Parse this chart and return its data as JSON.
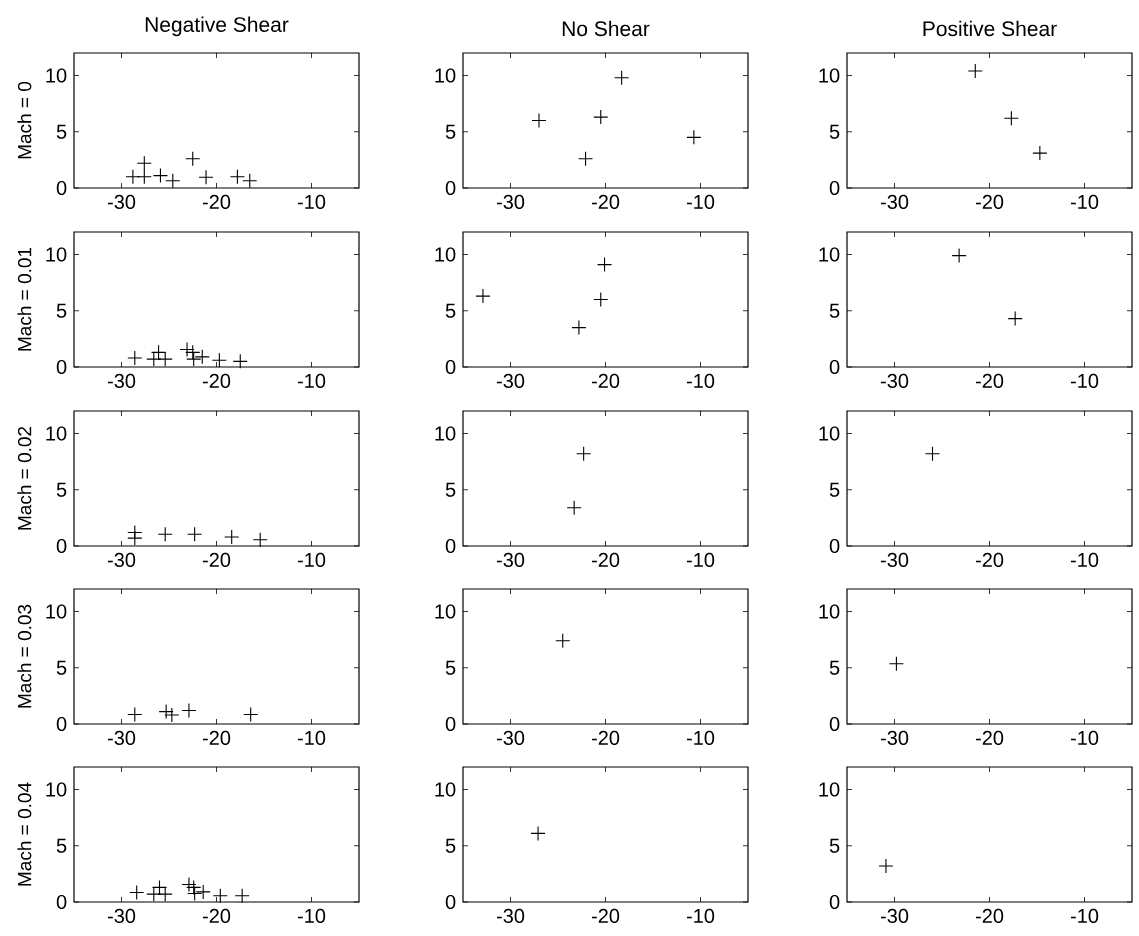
{
  "chart_data": [
    {
      "type": "scatter",
      "title": "Negative Shear",
      "ylabel": "Mach = 0",
      "color": "#000000",
      "marker": "cross",
      "xlim": [
        -35,
        -5
      ],
      "ylim": [
        0,
        12
      ],
      "xticks": [
        -30,
        -20,
        -10
      ],
      "yticks": [
        0,
        5,
        10
      ],
      "x": [
        -28.8,
        -27.6,
        -27.6,
        -25.9,
        -24.6,
        -22.5,
        -21.1,
        -17.8,
        -16.5
      ],
      "values": [
        1.0,
        1.0,
        2.2,
        1.1,
        0.65,
        2.6,
        0.95,
        1.0,
        0.65
      ]
    },
    {
      "type": "scatter",
      "title": "No Shear",
      "color": "#000000",
      "marker": "cross",
      "xlim": [
        -35,
        -5
      ],
      "ylim": [
        0,
        12
      ],
      "xticks": [
        -30,
        -20,
        -10
      ],
      "yticks": [
        0,
        5,
        10
      ],
      "x": [
        -27.0,
        -22.1,
        -20.5,
        -18.3,
        -10.7
      ],
      "values": [
        6.0,
        2.6,
        6.3,
        9.8,
        4.5
      ]
    },
    {
      "type": "scatter",
      "title": "Positive Shear",
      "color": "#000000",
      "marker": "cross",
      "xlim": [
        -35,
        -5
      ],
      "ylim": [
        0,
        12
      ],
      "xticks": [
        -30,
        -20,
        -10
      ],
      "yticks": [
        0,
        5,
        10
      ],
      "x": [
        -21.5,
        -17.7,
        -14.7
      ],
      "values": [
        10.4,
        6.2,
        3.1
      ]
    },
    {
      "type": "scatter",
      "ylabel": "Mach = 0.01",
      "color": "#000000",
      "marker": "cross",
      "xlim": [
        -35,
        -5
      ],
      "ylim": [
        0,
        12
      ],
      "xticks": [
        -30,
        -20,
        -10
      ],
      "yticks": [
        0,
        5,
        10
      ],
      "x": [
        -28.6,
        -26.6,
        -26.1,
        -25.4,
        -23.1,
        -22.5,
        -22.4,
        -21.5,
        -19.7,
        -17.5
      ],
      "values": [
        0.8,
        0.7,
        1.3,
        0.7,
        1.55,
        1.3,
        0.7,
        0.9,
        0.6,
        0.5
      ]
    },
    {
      "type": "scatter",
      "color": "#000000",
      "marker": "cross",
      "xlim": [
        -35,
        -5
      ],
      "ylim": [
        0,
        12
      ],
      "xticks": [
        -30,
        -20,
        -10
      ],
      "yticks": [
        0,
        5,
        10
      ],
      "x": [
        -32.9,
        -22.8,
        -20.5,
        -20.1
      ],
      "values": [
        6.3,
        3.5,
        6.0,
        9.1
      ]
    },
    {
      "type": "scatter",
      "color": "#000000",
      "marker": "cross",
      "xlim": [
        -35,
        -5
      ],
      "ylim": [
        0,
        12
      ],
      "xticks": [
        -30,
        -20,
        -10
      ],
      "yticks": [
        0,
        5,
        10
      ],
      "x": [
        -23.2,
        -17.3
      ],
      "values": [
        9.9,
        4.3
      ]
    },
    {
      "type": "scatter",
      "ylabel": "Mach = 0.02",
      "color": "#000000",
      "marker": "cross",
      "xlim": [
        -35,
        -5
      ],
      "ylim": [
        0,
        12
      ],
      "xticks": [
        -30,
        -20,
        -10
      ],
      "yticks": [
        0,
        5,
        10
      ],
      "x": [
        -28.6,
        -28.6,
        -25.4,
        -22.3,
        -18.4,
        -15.4
      ],
      "values": [
        1.2,
        0.7,
        1.05,
        1.05,
        0.8,
        0.55
      ]
    },
    {
      "type": "scatter",
      "color": "#000000",
      "marker": "cross",
      "xlim": [
        -35,
        -5
      ],
      "ylim": [
        0,
        12
      ],
      "xticks": [
        -30,
        -20,
        -10
      ],
      "yticks": [
        0,
        5,
        10
      ],
      "x": [
        -22.3,
        -23.3
      ],
      "values": [
        8.2,
        3.4
      ]
    },
    {
      "type": "scatter",
      "color": "#000000",
      "marker": "cross",
      "xlim": [
        -35,
        -5
      ],
      "ylim": [
        0,
        12
      ],
      "xticks": [
        -30,
        -20,
        -10
      ],
      "yticks": [
        0,
        5,
        10
      ],
      "x": [
        -26.0
      ],
      "values": [
        8.2
      ]
    },
    {
      "type": "scatter",
      "ylabel": "Mach = 0.03",
      "color": "#000000",
      "marker": "cross",
      "xlim": [
        -35,
        -5
      ],
      "ylim": [
        0,
        12
      ],
      "xticks": [
        -30,
        -20,
        -10
      ],
      "yticks": [
        0,
        5,
        10
      ],
      "x": [
        -28.6,
        -25.3,
        -24.7,
        -22.9,
        -16.4
      ],
      "values": [
        0.85,
        1.1,
        0.8,
        1.2,
        0.85
      ]
    },
    {
      "type": "scatter",
      "color": "#000000",
      "marker": "cross",
      "xlim": [
        -35,
        -5
      ],
      "ylim": [
        0,
        12
      ],
      "xticks": [
        -30,
        -20,
        -10
      ],
      "yticks": [
        0,
        5,
        10
      ],
      "x": [
        -24.5
      ],
      "values": [
        7.4
      ]
    },
    {
      "type": "scatter",
      "color": "#000000",
      "marker": "cross",
      "xlim": [
        -35,
        -5
      ],
      "ylim": [
        0,
        12
      ],
      "xticks": [
        -30,
        -20,
        -10
      ],
      "yticks": [
        0,
        5,
        10
      ],
      "x": [
        -29.8
      ],
      "values": [
        5.35
      ]
    },
    {
      "type": "scatter",
      "ylabel": "Mach = 0.04",
      "color": "#000000",
      "marker": "cross",
      "xlim": [
        -35,
        -5
      ],
      "ylim": [
        0,
        12
      ],
      "xticks": [
        -30,
        -20,
        -10
      ],
      "yticks": [
        0,
        5,
        10
      ],
      "x": [
        -28.4,
        -26.6,
        -26.0,
        -25.4,
        -22.9,
        -22.4,
        -22.3,
        -21.4,
        -19.6,
        -17.3
      ],
      "values": [
        0.85,
        0.7,
        1.3,
        0.7,
        1.55,
        1.3,
        0.75,
        0.9,
        0.55,
        0.55
      ]
    },
    {
      "type": "scatter",
      "color": "#000000",
      "marker": "cross",
      "xlim": [
        -35,
        -5
      ],
      "ylim": [
        0,
        12
      ],
      "xticks": [
        -30,
        -20,
        -10
      ],
      "yticks": [
        0,
        5,
        10
      ],
      "x": [
        -27.1
      ],
      "values": [
        6.1
      ]
    },
    {
      "type": "scatter",
      "color": "#000000",
      "marker": "cross",
      "xlim": [
        -35,
        -5
      ],
      "ylim": [
        0,
        12
      ],
      "xticks": [
        -30,
        -20,
        -10
      ],
      "yticks": [
        0,
        5,
        10
      ],
      "x": [
        -30.9
      ],
      "values": [
        3.2
      ]
    }
  ]
}
